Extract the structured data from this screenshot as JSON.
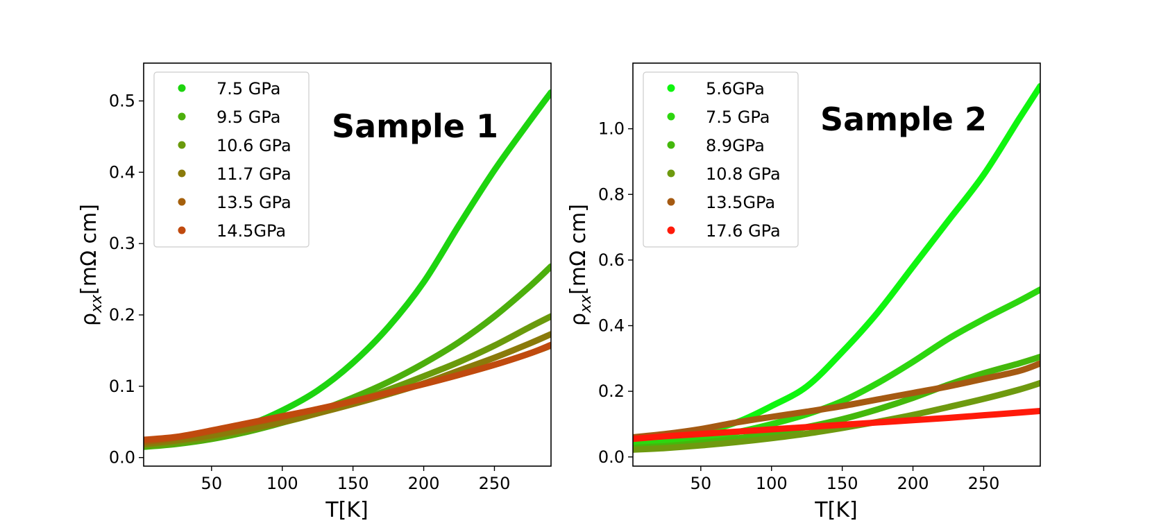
{
  "chart_data": [
    {
      "type": "line",
      "title": "Sample 1",
      "xlabel": "T[K]",
      "ylabel_main": "ρ",
      "ylabel_sub": "xx",
      "ylabel_rest": "[mΩ cm]",
      "xlim": [
        2,
        290
      ],
      "ylim": [
        -0.012,
        0.553
      ],
      "xticks": [
        "50",
        "100",
        "150",
        "200",
        "250"
      ],
      "yticks": [
        "0.0",
        "0.1",
        "0.2",
        "0.3",
        "0.4",
        "0.5"
      ],
      "legend_location": "upper-left",
      "x": [
        2,
        25,
        50,
        75,
        100,
        125,
        150,
        175,
        200,
        225,
        250,
        275,
        290
      ],
      "series": [
        {
          "name": "7.5 GPa",
          "color": "#1dd40f",
          "values": [
            0.018,
            0.024,
            0.033,
            0.045,
            0.066,
            0.094,
            0.133,
            0.183,
            0.246,
            0.326,
            0.403,
            0.472,
            0.512
          ]
        },
        {
          "name": "9.5 GPa",
          "color": "#4caf0c",
          "values": [
            0.015,
            0.019,
            0.026,
            0.036,
            0.049,
            0.065,
            0.084,
            0.106,
            0.132,
            0.162,
            0.198,
            0.24,
            0.268
          ]
        },
        {
          "name": "10.6 GPa",
          "color": "#6a9a0c",
          "values": [
            0.017,
            0.021,
            0.028,
            0.038,
            0.049,
            0.062,
            0.077,
            0.095,
            0.114,
            0.134,
            0.157,
            0.183,
            0.198
          ]
        },
        {
          "name": "11.7 GPa",
          "color": "#8a7a0a",
          "values": [
            0.019,
            0.024,
            0.031,
            0.04,
            0.05,
            0.062,
            0.075,
            0.089,
            0.104,
            0.122,
            0.14,
            0.16,
            0.173
          ]
        },
        {
          "name": "13.5 GPa",
          "color": "#a5600c",
          "values": [
            0.022,
            0.028,
            0.037,
            0.047,
            0.057,
            0.068,
            0.079,
            0.091,
            0.103,
            0.116,
            0.13,
            0.146,
            0.157
          ]
        },
        {
          "name": "14.5GPa",
          "color": "#c04a0e",
          "values": [
            0.025,
            0.029,
            0.038,
            0.048,
            0.058,
            0.068,
            0.079,
            0.091,
            0.103,
            0.116,
            0.13,
            0.146,
            0.158
          ]
        }
      ]
    },
    {
      "type": "line",
      "title": "Sample 2",
      "xlabel": "T[K]",
      "ylabel_main": "ρ",
      "ylabel_sub": "xx",
      "ylabel_rest": "[mΩ cm]",
      "xlim": [
        2,
        290
      ],
      "ylim": [
        -0.028,
        1.2
      ],
      "xticks": [
        "50",
        "100",
        "150",
        "200",
        "250"
      ],
      "yticks": [
        "0.0",
        "0.2",
        "0.4",
        "0.6",
        "0.8",
        "1.0"
      ],
      "legend_location": "upper-left",
      "x": [
        2,
        25,
        50,
        75,
        100,
        125,
        150,
        175,
        200,
        225,
        250,
        275,
        290
      ],
      "series": [
        {
          "name": "5.6GPa",
          "color": "#0ff50f",
          "values": [
            0.04,
            0.055,
            0.075,
            0.105,
            0.155,
            0.215,
            0.32,
            0.44,
            0.58,
            0.72,
            0.86,
            1.03,
            1.13
          ]
        },
        {
          "name": "7.5 GPa",
          "color": "#2dd60f",
          "values": [
            0.035,
            0.043,
            0.057,
            0.075,
            0.1,
            0.13,
            0.17,
            0.225,
            0.29,
            0.36,
            0.42,
            0.475,
            0.51
          ]
        },
        {
          "name": "8.9GPa",
          "color": "#44b80c",
          "values": [
            0.028,
            0.033,
            0.043,
            0.056,
            0.072,
            0.091,
            0.115,
            0.145,
            0.18,
            0.22,
            0.255,
            0.285,
            0.305
          ]
        },
        {
          "name": "10.8 GPa",
          "color": "#6e9a0f",
          "values": [
            0.022,
            0.027,
            0.035,
            0.045,
            0.057,
            0.071,
            0.088,
            0.107,
            0.128,
            0.152,
            0.177,
            0.205,
            0.225
          ]
        },
        {
          "name": "13.5GPa",
          "color": "#a55a12",
          "values": [
            0.06,
            0.07,
            0.085,
            0.105,
            0.122,
            0.138,
            0.155,
            0.175,
            0.195,
            0.215,
            0.238,
            0.262,
            0.285
          ]
        },
        {
          "name": "17.6 GPa",
          "color": "#ff1a0a",
          "values": [
            0.055,
            0.063,
            0.07,
            0.077,
            0.084,
            0.091,
            0.098,
            0.105,
            0.112,
            0.119,
            0.127,
            0.135,
            0.14
          ]
        }
      ]
    }
  ]
}
